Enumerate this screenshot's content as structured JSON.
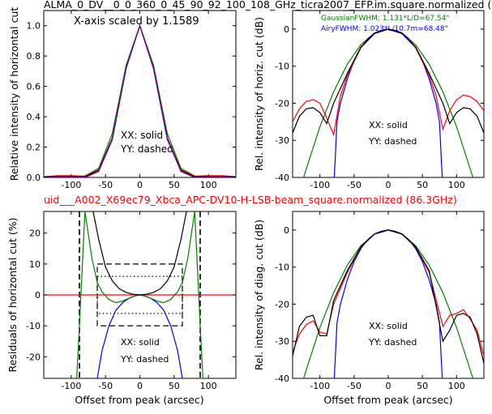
{
  "figure": {
    "top_title": "ALMA_0_DV__0_0_360_0_45_90_92_100_108_GHz_ticra2007_EFP.im.square.normalized (",
    "mid_title": "uid___A002_X69ec79_Xbca_APC-DV10-H-LSB-beam_square.normalized (86.3GHz)",
    "colors": {
      "red": "#ff0000",
      "black": "#000000",
      "blue": "#0000ff",
      "green": "#008000",
      "purple": "#800080"
    }
  },
  "chart_data": [
    {
      "id": "top_left",
      "type": "line",
      "ylabel": "Relative intensity of horizontal cut",
      "xlim": [
        -140,
        140
      ],
      "ylim": [
        0,
        1.1
      ],
      "xticks": [
        -100,
        -50,
        0,
        50,
        100
      ],
      "yticks": [
        0.0,
        0.2,
        0.4,
        0.6,
        0.8,
        1.0
      ],
      "ytick_labels": [
        "0.0",
        "0.2",
        "0.4",
        "0.6",
        "0.8",
        "1.0"
      ],
      "annotation_scale": "X-axis scaled by 1.1589",
      "note_solid": "XX: solid",
      "note_dashed": "YY: dashed",
      "fwhm_arcsec": 67.5,
      "series": [
        {
          "color": "green",
          "x": [
            -140,
            -120,
            -100,
            -80,
            -60,
            -40,
            -20,
            0,
            20,
            40,
            60,
            80,
            100,
            120,
            140
          ],
          "y": [
            0.0,
            0.0,
            0.0,
            0.01,
            0.06,
            0.29,
            0.74,
            1.0,
            0.74,
            0.29,
            0.06,
            0.01,
            0.0,
            0.0,
            0.0
          ]
        },
        {
          "color": "red",
          "x": [
            -140,
            -120,
            -100,
            -80,
            -60,
            -40,
            -20,
            0,
            20,
            40,
            60,
            80,
            100,
            120,
            140
          ],
          "y": [
            0.005,
            0.012,
            0.012,
            0.008,
            0.05,
            0.26,
            0.72,
            1.0,
            0.72,
            0.26,
            0.05,
            0.008,
            0.012,
            0.012,
            0.005
          ]
        },
        {
          "color": "black",
          "x": [
            -140,
            -120,
            -100,
            -80,
            -60,
            -40,
            -20,
            0,
            20,
            40,
            60,
            80,
            100,
            120,
            140
          ],
          "y": [
            0.003,
            0.006,
            0.006,
            0.004,
            0.045,
            0.26,
            0.72,
            1.0,
            0.72,
            0.26,
            0.045,
            0.004,
            0.006,
            0.006,
            0.003
          ]
        },
        {
          "color": "blue",
          "x": [
            -140,
            -120,
            -100,
            -80,
            -60,
            -40,
            -20,
            0,
            20,
            40,
            60,
            80,
            100,
            120,
            140
          ],
          "y": [
            0.0,
            0.0,
            0.0,
            0.0,
            0.04,
            0.25,
            0.72,
            1.0,
            0.72,
            0.25,
            0.04,
            0.0,
            0.0,
            0.0,
            0.0
          ]
        },
        {
          "color": "purple",
          "x": [
            -140,
            -120,
            -100,
            -80,
            -60,
            -40,
            -20,
            0,
            20,
            40,
            60,
            80,
            100,
            120,
            140
          ],
          "y": [
            0.0,
            0.0,
            0.0,
            0.0,
            0.04,
            0.255,
            0.72,
            1.0,
            0.72,
            0.255,
            0.04,
            0.0,
            0.0,
            0.0,
            0.0
          ]
        }
      ]
    },
    {
      "id": "top_right",
      "type": "line",
      "ylabel": "Rel. intensity of horiz. cut (dB)",
      "xlim": [
        -140,
        140
      ],
      "ylim": [
        -40,
        5
      ],
      "xticks": [
        -100,
        -50,
        0,
        50,
        100
      ],
      "yticks": [
        -40,
        -30,
        -20,
        -10,
        0
      ],
      "legend_gaussian": "GaussianFWHM: 1.131*L/D=67.54\"",
      "legend_airy": "AiryFWHM: 1.023*L/10.7m=68.48\"",
      "note_solid": "XX: solid",
      "note_dashed": "YY: dashed",
      "series": [
        {
          "color": "green",
          "x": [
            -124,
            -100,
            -80,
            -60,
            -40,
            -20,
            0,
            20,
            40,
            60,
            80,
            100,
            124
          ],
          "y": [
            -40,
            -26.3,
            -16.9,
            -9.5,
            -4.2,
            -1.05,
            0,
            -1.05,
            -4.2,
            -9.5,
            -16.9,
            -26.3,
            -40
          ]
        },
        {
          "color": "blue",
          "x": [
            -79,
            -75,
            -70,
            -60,
            -50,
            -40,
            -30,
            -20,
            -10,
            0,
            10,
            20,
            30,
            40,
            50,
            60,
            70,
            75,
            79
          ],
          "y": [
            -40,
            -25,
            -20,
            -13.5,
            -8.5,
            -5,
            -2.6,
            -1.05,
            -0.3,
            0,
            -0.3,
            -1.05,
            -2.6,
            -5,
            -8.5,
            -13.5,
            -20,
            -25,
            -40
          ]
        },
        {
          "color": "red",
          "x": [
            -140,
            -130,
            -120,
            -110,
            -100,
            -90,
            -80,
            -70,
            -60,
            -40,
            -20,
            0,
            20,
            40,
            60,
            70,
            80,
            90,
            100,
            110,
            120,
            130,
            140
          ],
          "y": [
            -25,
            -21.5,
            -19.5,
            -19,
            -20,
            -24,
            -28.5,
            -18,
            -12.5,
            -5,
            -1.2,
            0,
            -1.2,
            -5,
            -12.5,
            -18,
            -27,
            -22,
            -19,
            -17.8,
            -18.2,
            -19.5,
            -22
          ]
        },
        {
          "color": "black",
          "x": [
            -140,
            -130,
            -120,
            -110,
            -100,
            -90,
            -80,
            -70,
            -60,
            -40,
            -20,
            0,
            20,
            40,
            60,
            70,
            80,
            90,
            100,
            110,
            120,
            130,
            140
          ],
          "y": [
            -28,
            -23.5,
            -21.5,
            -21.2,
            -22.5,
            -25.5,
            -20,
            -16,
            -12,
            -4.8,
            -1.2,
            0,
            -1.2,
            -4.8,
            -12,
            -16,
            -20,
            -25.5,
            -22.5,
            -21.2,
            -21.5,
            -23.5,
            -28
          ]
        }
      ]
    },
    {
      "id": "bottom_left",
      "type": "line",
      "xlabel": "Offset from peak (arcsec)",
      "ylabel": "Residuals of horizontal cut (%)",
      "xlim": [
        -140,
        140
      ],
      "ylim": [
        -27,
        27
      ],
      "xticks": [
        -100,
        -50,
        0,
        50,
        100
      ],
      "yticks": [
        -20,
        -10,
        0,
        10,
        20
      ],
      "note_solid": "XX: solid",
      "note_dashed": "YY: dashed",
      "dashed_box": {
        "x": [
          -62,
          62
        ],
        "y": [
          -10,
          10
        ]
      },
      "dotted_box": {
        "x": [
          -62,
          62
        ],
        "y": [
          -6,
          6
        ]
      },
      "dashed_verticals": [
        -88,
        88
      ],
      "series": [
        {
          "color": "red",
          "x": [
            -140,
            140
          ],
          "y": [
            0,
            0
          ]
        },
        {
          "color": "blue",
          "x": [
            -62,
            -55,
            -45,
            -35,
            -25,
            -15,
            -5,
            0,
            5,
            15,
            25,
            35,
            45,
            55,
            62
          ],
          "y": [
            -27,
            -18,
            -10,
            -5,
            -2.5,
            -1,
            -0.2,
            0,
            -0.2,
            -1,
            -2.5,
            -5,
            -10,
            -18,
            -27
          ]
        },
        {
          "color": "green",
          "x": [
            -92,
            -88,
            -80,
            -70,
            -62,
            -55,
            -45,
            -35,
            -25,
            -15,
            -5,
            0,
            5,
            15,
            25,
            35,
            45,
            55,
            62,
            70,
            80,
            88,
            92
          ],
          "y": [
            -27,
            -10,
            27,
            12,
            4,
            1,
            -1.5,
            -2.5,
            -2,
            -1,
            -0.2,
            0,
            -0.2,
            -1,
            -2,
            -2.5,
            -1.5,
            1,
            4,
            12,
            27,
            -10,
            -27
          ]
        },
        {
          "color": "black",
          "x": [
            -68,
            -60,
            -50,
            -40,
            -30,
            -20,
            -10,
            0,
            10,
            20,
            30,
            40,
            50,
            60,
            68
          ],
          "y": [
            27,
            18,
            9,
            4.5,
            2,
            0.8,
            0.2,
            0,
            0.2,
            0.8,
            2,
            4.5,
            9,
            18,
            27
          ]
        }
      ]
    },
    {
      "id": "bottom_right",
      "type": "line",
      "xlabel": "Offset from peak (arcsec)",
      "ylabel": "Rel. intensity of diag. cut (dB)",
      "xlim": [
        -140,
        140
      ],
      "ylim": [
        -40,
        5
      ],
      "xticks": [
        -100,
        -50,
        0,
        50,
        100
      ],
      "yticks": [
        -40,
        -30,
        -20,
        -10,
        0
      ],
      "note_solid": "XX: solid",
      "note_dashed": "YY: dashed",
      "series": [
        {
          "color": "green",
          "x": [
            -124,
            -100,
            -80,
            -60,
            -40,
            -20,
            0,
            20,
            40,
            60,
            80,
            100,
            124
          ],
          "y": [
            -40,
            -26.3,
            -16.9,
            -9.5,
            -4.2,
            -1.05,
            0,
            -1.05,
            -4.2,
            -9.5,
            -16.9,
            -26.3,
            -40
          ]
        },
        {
          "color": "blue",
          "x": [
            -79,
            -75,
            -70,
            -60,
            -50,
            -40,
            -30,
            -20,
            -10,
            0,
            10,
            20,
            30,
            40,
            50,
            60,
            70,
            75,
            79
          ],
          "y": [
            -40,
            -25,
            -20,
            -13.5,
            -8.5,
            -5,
            -2.6,
            -1.05,
            -0.3,
            0,
            -0.3,
            -1.05,
            -2.6,
            -5,
            -8.5,
            -13.5,
            -20,
            -25,
            -40
          ]
        },
        {
          "color": "red",
          "x": [
            -140,
            -130,
            -120,
            -110,
            -100,
            -90,
            -80,
            -60,
            -40,
            -20,
            0,
            20,
            40,
            60,
            80,
            90,
            100,
            110,
            120,
            130,
            140
          ],
          "y": [
            -33,
            -28,
            -25.5,
            -24.5,
            -27.5,
            -28,
            -20,
            -11.5,
            -4.6,
            -1.1,
            0,
            -1.1,
            -4.6,
            -11.5,
            -26,
            -23,
            -22.5,
            -21.5,
            -24,
            -27,
            -34
          ]
        },
        {
          "color": "black",
          "x": [
            -140,
            -130,
            -120,
            -110,
            -100,
            -90,
            -80,
            -60,
            -40,
            -20,
            0,
            20,
            40,
            60,
            80,
            90,
            100,
            110,
            120,
            130,
            140
          ],
          "y": [
            -34,
            -26,
            -23.5,
            -23,
            -28.5,
            -28.5,
            -19,
            -11,
            -4.5,
            -1.1,
            0,
            -1.1,
            -4.5,
            -11,
            -30,
            -27,
            -23,
            -22.5,
            -23.5,
            -28,
            -36
          ]
        }
      ]
    }
  ]
}
